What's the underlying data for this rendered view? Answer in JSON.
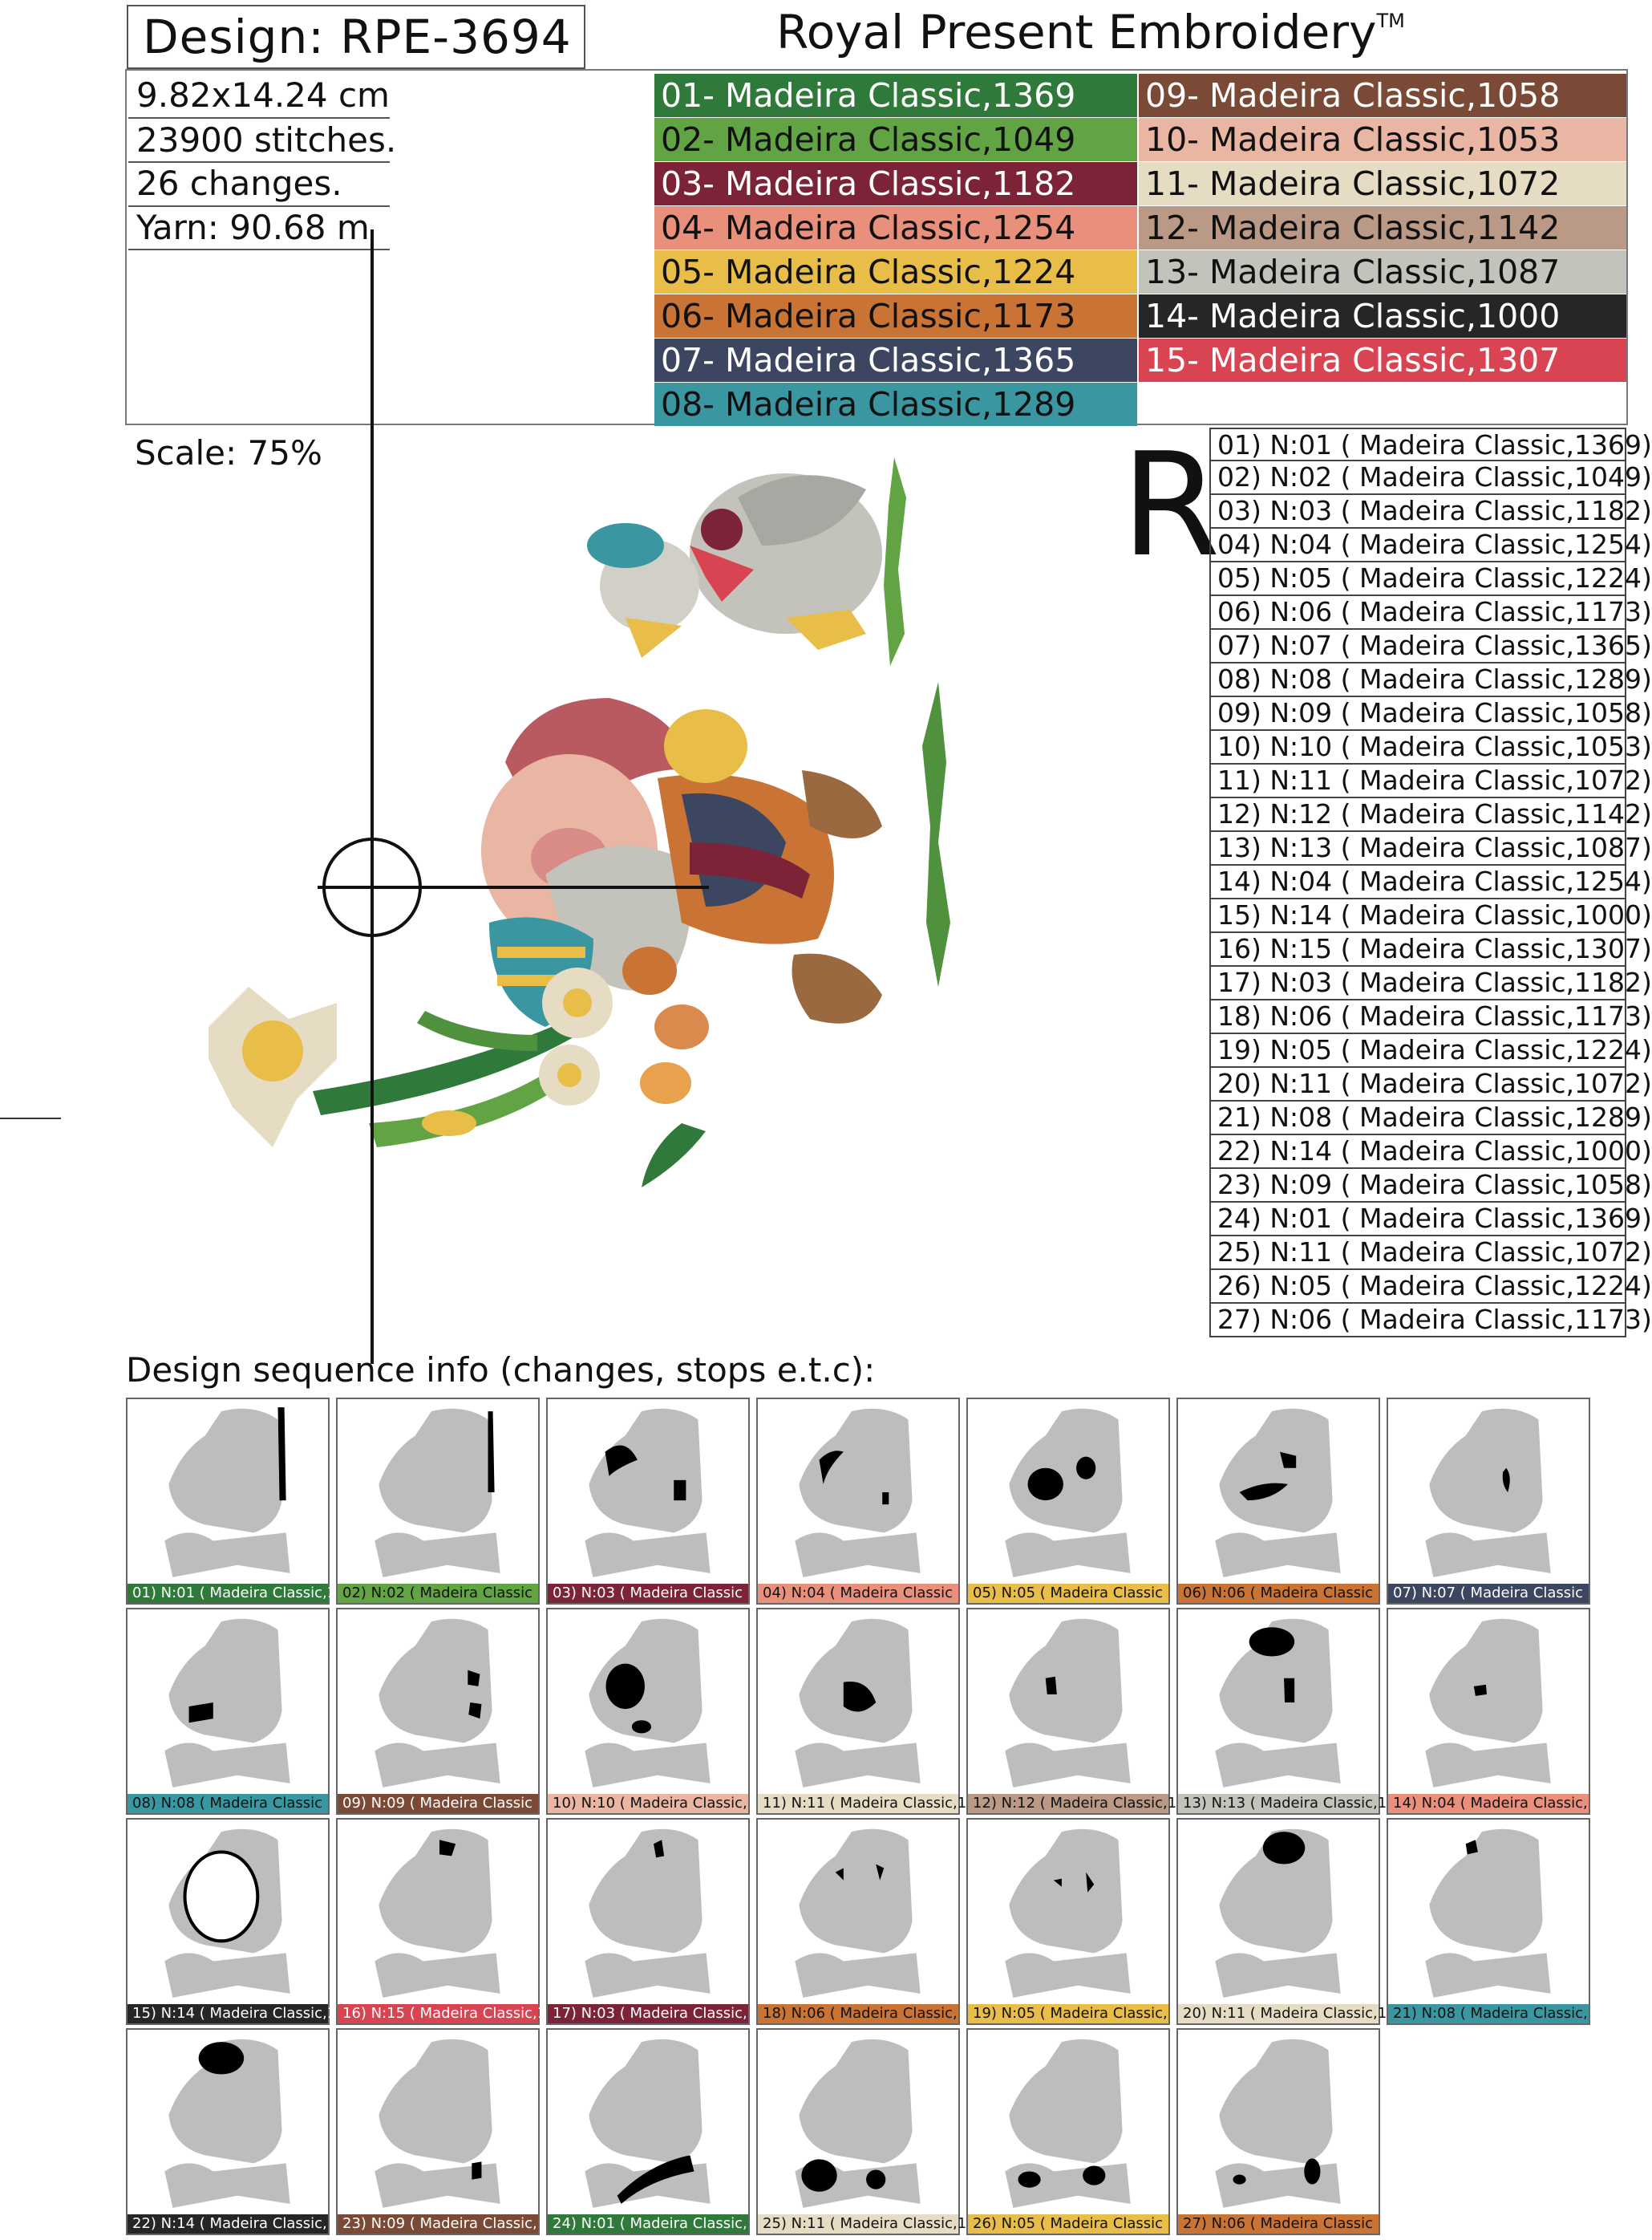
{
  "header": {
    "design_title": "Design: RPE-3694",
    "brand": "Royal Present Embroidery",
    "trademark": "TM"
  },
  "info": {
    "size": "9.82x14.24 cm",
    "stitches": "23900 stitches.",
    "changes": "26 changes.",
    "yarn": "Yarn: 90.68 m",
    "scale": "Scale: 75%"
  },
  "threads": [
    {
      "label": "01- Madeira Classic,1369",
      "color": "#2f7a3a",
      "text": "#ffffff"
    },
    {
      "label": "02- Madeira Classic,1049",
      "color": "#62a444",
      "text": "#111111"
    },
    {
      "label": "03- Madeira Classic,1182",
      "color": "#7c2337",
      "text": "#ffffff"
    },
    {
      "label": "04- Madeira Classic,1254",
      "color": "#e9907d",
      "text": "#111111"
    },
    {
      "label": "05- Madeira Classic,1224",
      "color": "#e8bd48",
      "text": "#111111"
    },
    {
      "label": "06- Madeira Classic,1173",
      "color": "#c97434",
      "text": "#111111"
    },
    {
      "label": "07- Madeira Classic,1365",
      "color": "#3c4660",
      "text": "#ffffff"
    },
    {
      "label": "08- Madeira Classic,1289",
      "color": "#3a97a2",
      "text": "#111111"
    },
    {
      "label": "09- Madeira Classic,1058",
      "color": "#7b4a37",
      "text": "#ffffff"
    },
    {
      "label": "10- Madeira Classic,1053",
      "color": "#e9b6a3",
      "text": "#111111"
    },
    {
      "label": "11- Madeira Classic,1072",
      "color": "#e6dcc4",
      "text": "#111111"
    },
    {
      "label": "12- Madeira Classic,1142",
      "color": "#ba9987",
      "text": "#111111"
    },
    {
      "label": "13- Madeira Classic,1087",
      "color": "#c3c3bc",
      "text": "#111111"
    },
    {
      "label": "14- Madeira Classic,1000",
      "color": "#262626",
      "text": "#ffffff"
    },
    {
      "label": "15- Madeira Classic,1307",
      "color": "#d94453",
      "text": "#ffffff"
    }
  ],
  "right_mark": "R",
  "sequence": [
    {
      "label": "01) N:01 ( Madeira Classic,1369)",
      "short": "01) N:01 ( Madeira Classic,1",
      "thread": 0
    },
    {
      "label": "02) N:02 ( Madeira Classic,1049)",
      "short": "02) N:02 ( Madeira Classic",
      "thread": 1
    },
    {
      "label": "03) N:03 ( Madeira Classic,1182)",
      "short": "03) N:03 ( Madeira Classic",
      "thread": 2
    },
    {
      "label": "04) N:04 ( Madeira Classic,1254)",
      "short": "04) N:04 ( Madeira Classic",
      "thread": 3
    },
    {
      "label": "05) N:05 ( Madeira Classic,1224)",
      "short": "05) N:05 ( Madeira Classic",
      "thread": 4
    },
    {
      "label": "06) N:06 ( Madeira Classic,1173)",
      "short": "06) N:06 ( Madeira Classic",
      "thread": 5
    },
    {
      "label": "07) N:07 ( Madeira Classic,1365)",
      "short": "07) N:07 ( Madeira Classic",
      "thread": 6
    },
    {
      "label": "08) N:08 ( Madeira Classic,1289)",
      "short": "08) N:08 ( Madeira Classic",
      "thread": 7
    },
    {
      "label": "09) N:09 ( Madeira Classic,1058)",
      "short": "09) N:09 ( Madeira Classic",
      "thread": 8
    },
    {
      "label": "10) N:10 ( Madeira Classic,1053)",
      "short": "10) N:10 ( Madeira Classic,",
      "thread": 9
    },
    {
      "label": "11) N:11 ( Madeira Classic,1072)",
      "short": "11) N:11 ( Madeira Classic,10",
      "thread": 10
    },
    {
      "label": "12) N:12 ( Madeira Classic,1142)",
      "short": "12) N:12 ( Madeira Classic,1",
      "thread": 11
    },
    {
      "label": "13) N:13 ( Madeira Classic,1087)",
      "short": "13) N:13 ( Madeira Classic,1",
      "thread": 12
    },
    {
      "label": "14) N:04 ( Madeira Classic,1254)",
      "short": "14) N:04 ( Madeira Classic,",
      "thread": 3
    },
    {
      "label": "15) N:14 ( Madeira Classic,1000)",
      "short": "15) N:14 ( Madeira Classic,1",
      "thread": 13
    },
    {
      "label": "16) N:15 ( Madeira Classic,1307)",
      "short": "16) N:15 ( Madeira Classic,1",
      "thread": 14
    },
    {
      "label": "17) N:03 ( Madeira Classic,1182)",
      "short": "17) N:03 ( Madeira Classic,",
      "thread": 2
    },
    {
      "label": "18) N:06 ( Madeira Classic,1173)",
      "short": "18) N:06 ( Madeira Classic,",
      "thread": 5
    },
    {
      "label": "19) N:05 ( Madeira Classic,1224)",
      "short": "19) N:05 ( Madeira Classic,",
      "thread": 4
    },
    {
      "label": "20) N:11 ( Madeira Classic,1072)",
      "short": "20) N:11 ( Madeira Classic,1",
      "thread": 10
    },
    {
      "label": "21) N:08 ( Madeira Classic,1289)",
      "short": "21) N:08 ( Madeira Classic,",
      "thread": 7
    },
    {
      "label": "22) N:14 ( Madeira Classic,1000)",
      "short": "22) N:14 ( Madeira Classic,",
      "thread": 13
    },
    {
      "label": "23) N:09 ( Madeira Classic,1058)",
      "short": "23) N:09 ( Madeira Classic,",
      "thread": 8
    },
    {
      "label": "24) N:01 ( Madeira Classic,1369)",
      "short": "24) N:01 ( Madeira Classic,",
      "thread": 0
    },
    {
      "label": "25) N:11 ( Madeira Classic,1072)",
      "short": "25) N:11 ( Madeira Classic,1",
      "thread": 10
    },
    {
      "label": "26) N:05 ( Madeira Classic,1224)",
      "short": "26) N:05 ( Madeira Classic",
      "thread": 4
    },
    {
      "label": "27) N:06 ( Madeira Classic,1173)",
      "short": "27) N:06 ( Madeira Classic",
      "thread": 5
    }
  ],
  "sequence_title": "Design sequence info (changes, stops e.t.c):"
}
